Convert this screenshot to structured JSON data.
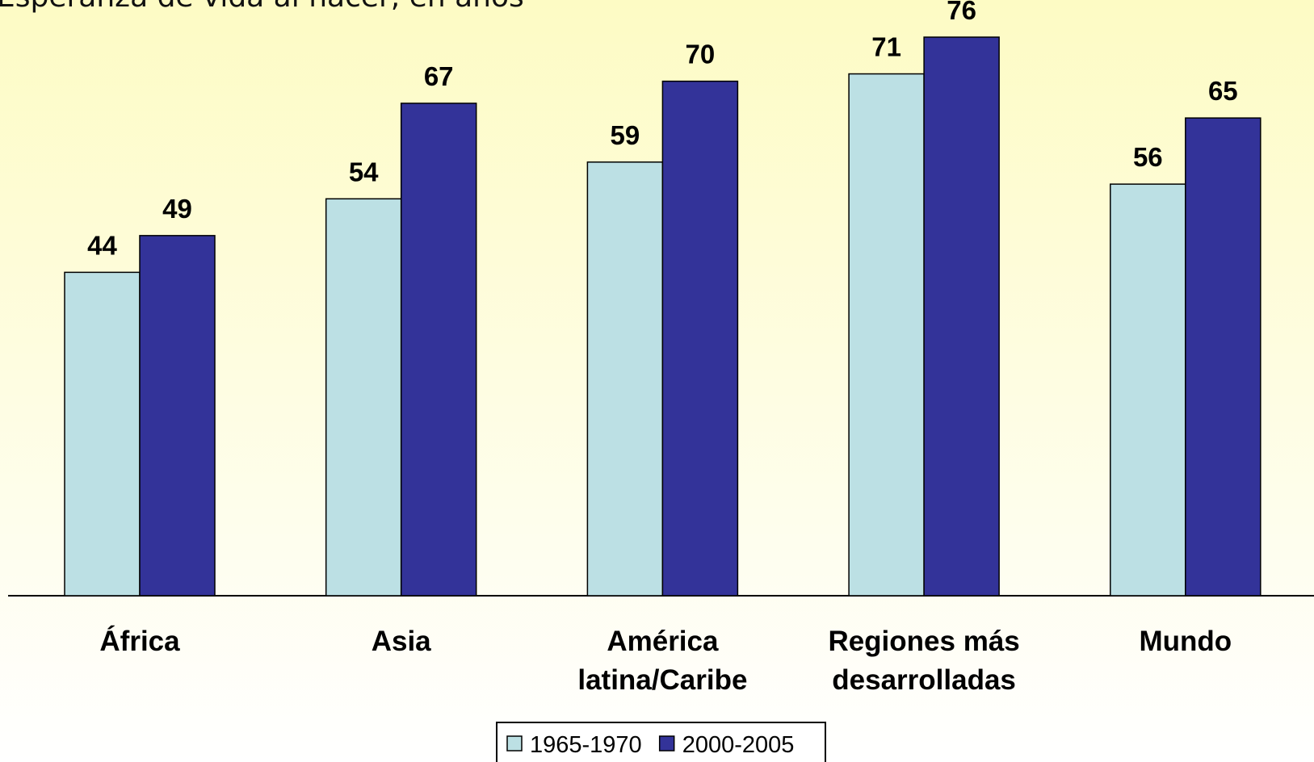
{
  "chart_data": {
    "type": "bar",
    "subtitle": "Esperanza de vida al nacer, en años",
    "categories": [
      "África",
      "Asia",
      "América\nlatina/Caribe",
      "Regiones más\ndesarrolladas",
      "Mundo"
    ],
    "series": [
      {
        "name": "1965-1970",
        "color": "#bce0e4",
        "values": [
          44,
          54,
          59,
          71,
          56
        ]
      },
      {
        "name": "2000-2005",
        "color": "#333399",
        "values": [
          49,
          67,
          70,
          76,
          65
        ]
      }
    ]
  }
}
